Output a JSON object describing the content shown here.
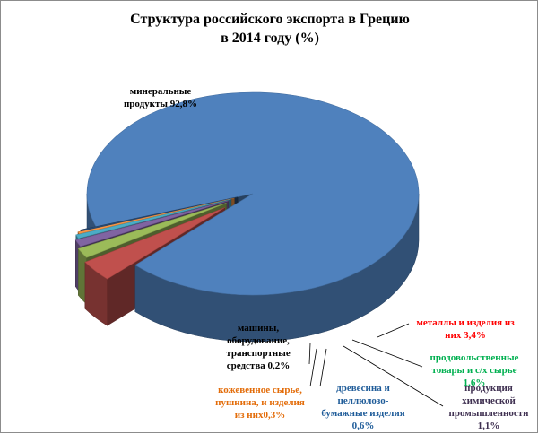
{
  "chart_data": {
    "type": "pie",
    "title_line1": "Структура российского экспорта в Грецию",
    "title_line2": "в 2014 году (%)",
    "unit": "%",
    "series": [
      {
        "label_lines": [
          "минеральные",
          "продукты 92,8%"
        ],
        "value": 92.8,
        "color": "#4f81bd",
        "text_color": "#000000"
      },
      {
        "label_lines": [
          "металлы и изделия из",
          "них 3,4%"
        ],
        "value": 3.4,
        "color": "#c0504d",
        "text_color": "#ff0000"
      },
      {
        "label_lines": [
          "продовольственные",
          "товары и с/х сырье",
          "1,6%"
        ],
        "value": 1.6,
        "color": "#9bbb59",
        "text_color": "#00b050"
      },
      {
        "label_lines": [
          "продукция",
          "химической",
          "промышленности",
          "1,1%"
        ],
        "value": 1.1,
        "color": "#8064a2",
        "text_color": "#403152"
      },
      {
        "label_lines": [
          "древесина и",
          "целлюлозо-",
          "бумажные изделия",
          "0,6%"
        ],
        "value": 0.6,
        "color": "#4bacc6",
        "text_color": "#1f5c99"
      },
      {
        "label_lines": [
          "кожевенное сырье,",
          "пушнина, и изделия",
          "из них0,3%"
        ],
        "value": 0.3,
        "color": "#f79646",
        "text_color": "#e36c09"
      },
      {
        "label_lines": [
          "машины,",
          "оборудование,",
          "транспортные",
          "средства 0,2%"
        ],
        "value": 0.2,
        "color": "#2c4d75",
        "text_color": "#000000"
      }
    ]
  }
}
